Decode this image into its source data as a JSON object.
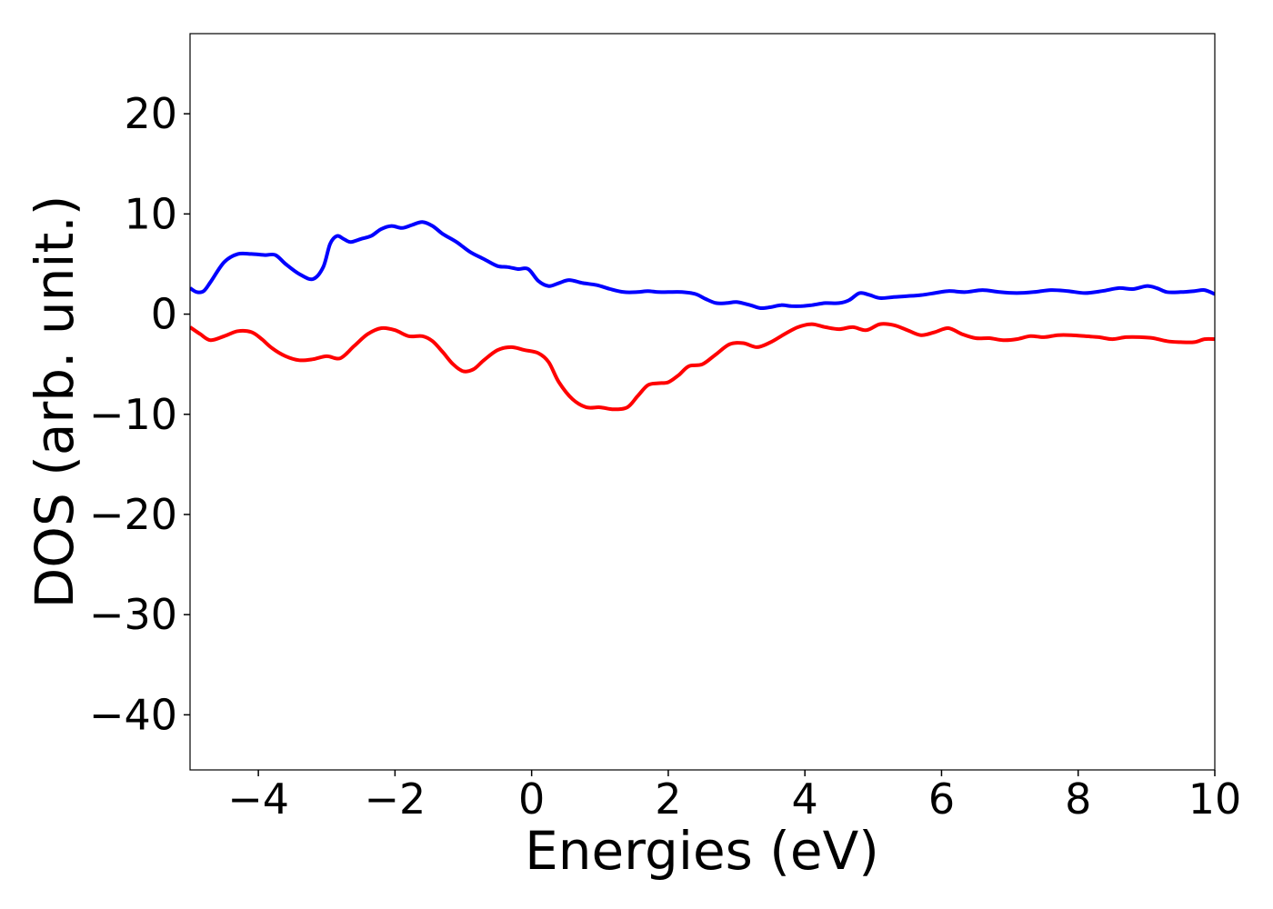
{
  "chart_data": {
    "type": "line",
    "xlabel": "Energies (eV)",
    "ylabel": "DOS (arb. unit.)",
    "xlim": [
      -5,
      10
    ],
    "ylim": [
      -45.5,
      28
    ],
    "xticks": [
      -4,
      -2,
      0,
      2,
      4,
      6,
      8,
      10
    ],
    "xtick_labels": [
      "−4",
      "−2",
      "0",
      "2",
      "4",
      "6",
      "8",
      "10"
    ],
    "yticks": [
      20,
      10,
      0,
      -10,
      -20,
      -30,
      -40
    ],
    "ytick_labels": [
      "20",
      "10",
      "0",
      "−10",
      "−20",
      "−30",
      "−40"
    ],
    "grid": false,
    "legend": "none",
    "series": [
      {
        "color": "#0000ff",
        "x": [
          -5.0,
          -4.9,
          -4.8,
          -4.7,
          -4.5,
          -4.3,
          -4.1,
          -3.9,
          -3.75,
          -3.6,
          -3.4,
          -3.2,
          -3.05,
          -2.95,
          -2.85,
          -2.75,
          -2.65,
          -2.5,
          -2.35,
          -2.2,
          -2.05,
          -1.9,
          -1.75,
          -1.6,
          -1.45,
          -1.3,
          -1.1,
          -0.9,
          -0.7,
          -0.5,
          -0.35,
          -0.2,
          -0.05,
          0.1,
          0.25,
          0.4,
          0.55,
          0.75,
          0.95,
          1.15,
          1.35,
          1.55,
          1.7,
          1.85,
          2.0,
          2.2,
          2.4,
          2.55,
          2.7,
          2.85,
          3.0,
          3.2,
          3.35,
          3.5,
          3.65,
          3.8,
          3.95,
          4.1,
          4.3,
          4.5,
          4.65,
          4.8,
          4.95,
          5.1,
          5.3,
          5.5,
          5.7,
          5.9,
          6.1,
          6.35,
          6.6,
          6.85,
          7.1,
          7.35,
          7.6,
          7.85,
          8.1,
          8.35,
          8.6,
          8.8,
          9.0,
          9.15,
          9.3,
          9.5,
          9.7,
          9.85,
          10.0
        ],
        "y": [
          2.6,
          2.2,
          2.3,
          3.2,
          5.2,
          6.0,
          6.0,
          5.9,
          5.9,
          5.0,
          4.0,
          3.5,
          4.7,
          7.0,
          7.8,
          7.5,
          7.2,
          7.5,
          7.8,
          8.5,
          8.8,
          8.6,
          8.9,
          9.2,
          8.8,
          8.0,
          7.2,
          6.2,
          5.5,
          4.8,
          4.7,
          4.5,
          4.5,
          3.3,
          2.8,
          3.1,
          3.4,
          3.1,
          2.9,
          2.5,
          2.2,
          2.2,
          2.3,
          2.2,
          2.2,
          2.2,
          2.0,
          1.5,
          1.1,
          1.1,
          1.2,
          0.9,
          0.6,
          0.7,
          0.9,
          0.8,
          0.8,
          0.9,
          1.1,
          1.1,
          1.4,
          2.1,
          1.9,
          1.6,
          1.7,
          1.8,
          1.9,
          2.1,
          2.3,
          2.2,
          2.4,
          2.2,
          2.1,
          2.2,
          2.4,
          2.3,
          2.1,
          2.3,
          2.6,
          2.5,
          2.8,
          2.6,
          2.2,
          2.2,
          2.3,
          2.4,
          2.0
        ]
      },
      {
        "color": "#ff0000",
        "x": [
          -5.0,
          -4.85,
          -4.7,
          -4.5,
          -4.3,
          -4.1,
          -3.95,
          -3.8,
          -3.6,
          -3.4,
          -3.2,
          -3.0,
          -2.8,
          -2.6,
          -2.4,
          -2.2,
          -2.0,
          -1.8,
          -1.6,
          -1.45,
          -1.3,
          -1.15,
          -1.0,
          -0.85,
          -0.7,
          -0.5,
          -0.3,
          -0.1,
          0.1,
          0.25,
          0.4,
          0.6,
          0.8,
          1.0,
          1.2,
          1.4,
          1.55,
          1.7,
          1.85,
          2.0,
          2.15,
          2.3,
          2.5,
          2.7,
          2.9,
          3.1,
          3.3,
          3.5,
          3.7,
          3.9,
          4.1,
          4.3,
          4.5,
          4.7,
          4.9,
          5.1,
          5.3,
          5.5,
          5.7,
          5.9,
          6.1,
          6.3,
          6.5,
          6.7,
          6.9,
          7.1,
          7.3,
          7.5,
          7.7,
          7.9,
          8.1,
          8.3,
          8.5,
          8.7,
          8.9,
          9.1,
          9.3,
          9.5,
          9.7,
          9.85,
          10.0
        ],
        "y": [
          -1.3,
          -2.0,
          -2.6,
          -2.2,
          -1.7,
          -1.8,
          -2.5,
          -3.4,
          -4.2,
          -4.6,
          -4.5,
          -4.2,
          -4.4,
          -3.2,
          -2.0,
          -1.4,
          -1.6,
          -2.2,
          -2.2,
          -2.7,
          -3.8,
          -5.0,
          -5.7,
          -5.5,
          -4.6,
          -3.6,
          -3.3,
          -3.6,
          -3.9,
          -4.8,
          -6.8,
          -8.5,
          -9.3,
          -9.3,
          -9.5,
          -9.3,
          -8.2,
          -7.1,
          -6.9,
          -6.8,
          -6.1,
          -5.2,
          -5.0,
          -4.0,
          -3.0,
          -2.9,
          -3.3,
          -2.8,
          -2.0,
          -1.3,
          -1.0,
          -1.3,
          -1.5,
          -1.3,
          -1.6,
          -1.0,
          -1.1,
          -1.6,
          -2.1,
          -1.8,
          -1.4,
          -2.0,
          -2.4,
          -2.4,
          -2.6,
          -2.5,
          -2.2,
          -2.3,
          -2.1,
          -2.1,
          -2.2,
          -2.3,
          -2.5,
          -2.3,
          -2.3,
          -2.4,
          -2.7,
          -2.8,
          -2.8,
          -2.5,
          -2.5
        ]
      }
    ]
  }
}
